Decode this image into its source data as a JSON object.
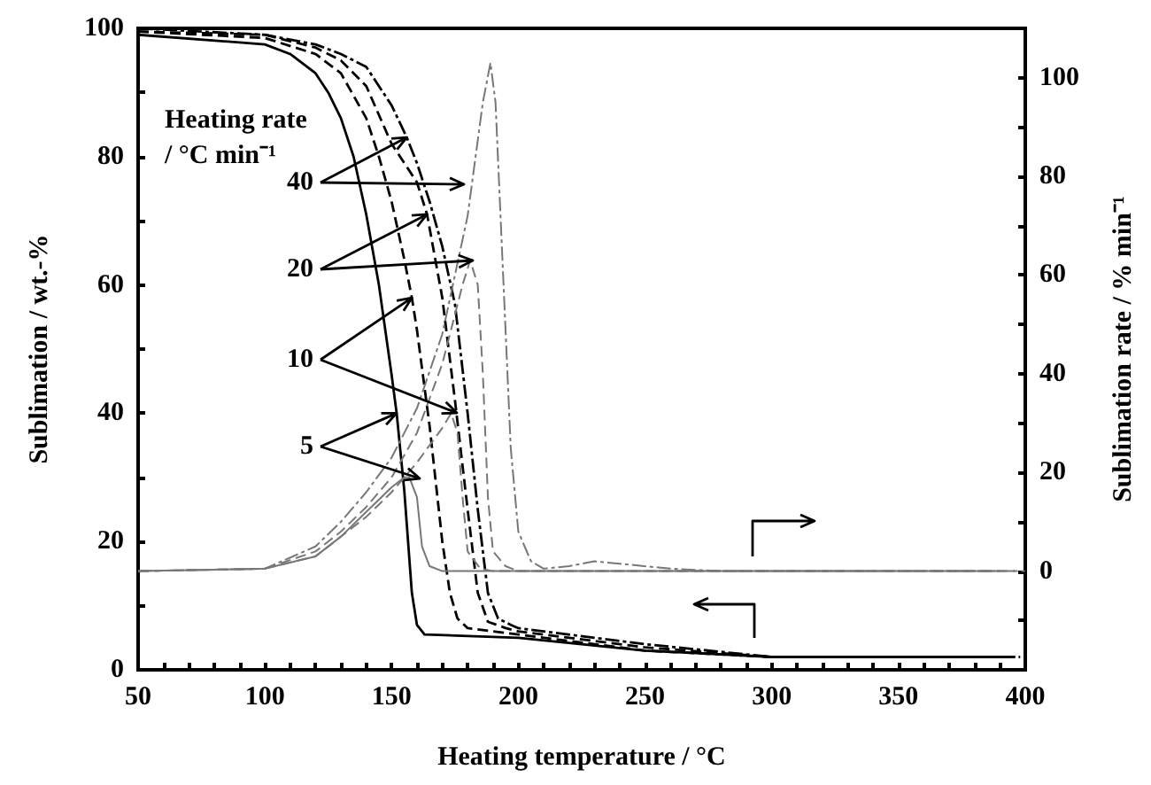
{
  "chart_data": {
    "type": "line",
    "xlabel": "Heating temperature / °C",
    "ylabel": "Sublimation / wt.-%",
    "y2label": "Sublimation rate / % min⁻¹",
    "annotations": [
      "Heating rate\n/ °C min⁻¹",
      {
        "text": "40",
        "x": 156,
        "y": 83
      },
      {
        "text": "20",
        "x": 164,
        "y": 71
      },
      {
        "text": "10",
        "x": 158,
        "y": 58
      },
      {
        "text": "5",
        "x": 152,
        "y": 40
      }
    ],
    "xlim": [
      50,
      400
    ],
    "xticks": [
      50,
      {
        "value": 60,
        "label": null
      },
      {
        "value": 70,
        "label": null
      },
      {
        "value": 80,
        "label": null
      },
      {
        "value": 90,
        "label": null
      },
      100,
      {
        "value": 110,
        "label": null
      },
      {
        "value": 120,
        "label": null
      },
      {
        "value": 130,
        "label": null
      },
      {
        "value": 140,
        "label": null
      },
      150,
      {
        "value": 160,
        "label": null
      },
      {
        "value": 170,
        "label": null
      },
      {
        "value": 180,
        "label": null
      },
      {
        "value": 190,
        "label": null
      },
      200,
      {
        "value": 210,
        "label": null
      },
      {
        "value": 220,
        "label": null
      },
      {
        "value": 230,
        "label": null
      },
      {
        "value": 240,
        "label": null
      },
      250,
      {
        "value": 260,
        "label": null
      },
      {
        "value": 270,
        "label": null
      },
      {
        "value": 280,
        "label": null
      },
      {
        "value": 290,
        "label": null
      },
      300,
      {
        "value": 310,
        "label": null
      },
      {
        "value": 320,
        "label": null
      },
      {
        "value": 330,
        "label": null
      },
      {
        "value": 340,
        "label": null
      },
      350,
      {
        "value": 360,
        "label": null
      },
      {
        "value": 370,
        "label": null
      },
      {
        "value": 380,
        "label": null
      },
      {
        "value": 390,
        "label": null
      },
      400
    ],
    "ylim": [
      0,
      100
    ],
    "yticks": [
      0,
      {
        "value": 10,
        "label": null
      },
      20,
      {
        "value": 30,
        "label": null
      },
      40,
      {
        "value": 50,
        "label": null
      },
      60,
      {
        "value": 70,
        "label": null
      },
      80,
      {
        "value": 90,
        "label": null
      },
      100
    ],
    "y2lim": [
      -20,
      110
    ],
    "y2ticks": [
      {
        "value": -10,
        "label": null
      },
      0,
      {
        "value": 10,
        "label": null
      },
      20,
      {
        "value": 30,
        "label": null
      },
      40,
      {
        "value": 50,
        "label": null
      },
      60,
      {
        "value": 70,
        "label": null
      },
      80,
      {
        "value": 90,
        "label": null
      },
      100
    ],
    "grid": false,
    "marker": "none",
    "legend": false,
    "series": [
      {
        "color": "#000000",
        "line_style": "dotted",
        "x": [
          50,
          100,
          120,
          130,
          140,
          150,
          156,
          160,
          165,
          170,
          175,
          180,
          184,
          188,
          192,
          197,
          200,
          250,
          300,
          398
        ],
        "values": [
          100,
          99,
          97.5,
          96,
          94,
          88,
          83,
          79,
          73,
          66,
          57,
          40,
          25,
          12,
          8,
          7,
          6.5,
          4,
          2,
          2
        ]
      },
      {
        "color": "#000000",
        "line_style": "dashed",
        "x": [
          50,
          100,
          120,
          130,
          140,
          150,
          160,
          164,
          170,
          175,
          180,
          184,
          188,
          195,
          200,
          250,
          300,
          396
        ],
        "values": [
          99.5,
          99,
          97,
          95,
          91,
          82,
          76,
          71,
          58,
          42,
          25,
          12,
          7.5,
          6.5,
          6,
          3.5,
          2,
          2
        ]
      },
      {
        "color": "#000000",
        "line_style": "dashed",
        "x": [
          50,
          100,
          120,
          130,
          140,
          145,
          150,
          155,
          158,
          160,
          165,
          170,
          173,
          176,
          180,
          200,
          250,
          300,
          394
        ],
        "values": [
          99.5,
          98.5,
          96,
          93,
          86,
          80,
          73,
          64,
          58,
          53,
          38,
          20,
          12,
          8,
          6.5,
          5.5,
          3,
          2,
          2
        ]
      },
      {
        "color": "#000000",
        "line_style": "solid",
        "x": [
          50,
          100,
          110,
          120,
          125,
          130,
          135,
          140,
          145,
          150,
          152,
          155,
          158,
          160,
          163,
          200,
          250,
          300,
          392
        ],
        "values": [
          99,
          97.5,
          96,
          93,
          90,
          86,
          80,
          71,
          60,
          46,
          40,
          28,
          12,
          7,
          5.5,
          5,
          3,
          2,
          2
        ]
      },
      {
        "color": "#777777",
        "line_style": "dotted",
        "axis": "y2",
        "x": [
          50,
          100,
          120,
          130,
          140,
          150,
          160,
          170,
          180,
          186,
          189,
          191,
          194,
          197,
          200,
          205,
          210,
          220,
          230,
          240,
          260,
          280,
          400
        ],
        "values": [
          0,
          0.5,
          5,
          10,
          16,
          23,
          33,
          48,
          72,
          95,
          103,
          95,
          60,
          25,
          8,
          2,
          0.5,
          1,
          2,
          1.5,
          0.5,
          0,
          0
        ]
      },
      {
        "color": "#777777",
        "line_style": "dashed",
        "axis": "y2",
        "x": [
          50,
          100,
          120,
          130,
          140,
          150,
          160,
          170,
          178,
          181,
          184,
          186,
          188,
          190,
          195,
          200,
          396
        ],
        "values": [
          0,
          0.5,
          4,
          8,
          13,
          19,
          28,
          42,
          58,
          63,
          58,
          40,
          15,
          4,
          1,
          0,
          0
        ]
      },
      {
        "color": "#777777",
        "line_style": "dashed",
        "axis": "y2",
        "x": [
          50,
          100,
          120,
          130,
          140,
          150,
          160,
          170,
          173.5,
          176,
          178,
          180,
          185,
          190,
          392
        ],
        "values": [
          0,
          0.5,
          3,
          7,
          11,
          16,
          22,
          29,
          32,
          28,
          15,
          4,
          0.5,
          0,
          0
        ]
      },
      {
        "color": "#777777",
        "line_style": "solid",
        "axis": "y2",
        "x": [
          50,
          100,
          120,
          130,
          140,
          150,
          155,
          157,
          160,
          162,
          165,
          170,
          388
        ],
        "values": [
          0,
          0.5,
          3,
          7,
          12,
          17,
          19,
          19,
          15,
          5,
          1,
          0,
          0
        ]
      }
    ]
  }
}
